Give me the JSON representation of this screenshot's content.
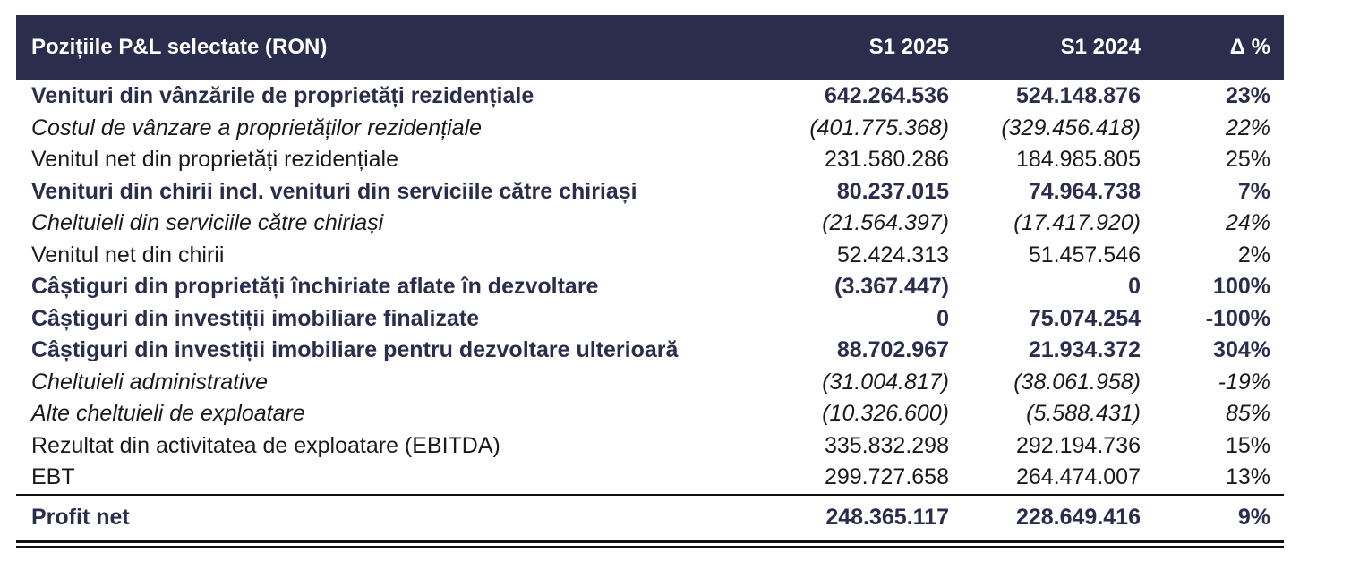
{
  "table": {
    "headers": {
      "label": "Pozițiile P&L selectate (RON)",
      "s1_2025": "S1 2025",
      "s1_2024": "S1 2024",
      "delta": "Δ %"
    },
    "rows": [
      {
        "label": "Venituri din vânzările de proprietăți rezidențiale",
        "s1_2025": "642.264.536",
        "s1_2024": "524.148.876",
        "delta": "23%",
        "style": "bold"
      },
      {
        "label": "Costul de vânzare a proprietăților rezidențiale",
        "s1_2025": "(401.775.368)",
        "s1_2024": "(329.456.418)",
        "delta": "22%",
        "style": "italic"
      },
      {
        "label": "Venitul net din proprietăți rezidențiale",
        "s1_2025": "231.580.286",
        "s1_2024": "184.985.805",
        "delta": "25%",
        "style": "normal"
      },
      {
        "label": "Venituri din chirii incl. venituri din serviciile către chiriași",
        "s1_2025": "80.237.015",
        "s1_2024": "74.964.738",
        "delta": "7%",
        "style": "bold"
      },
      {
        "label": "Cheltuieli din serviciile către chiriași",
        "s1_2025": "(21.564.397)",
        "s1_2024": "(17.417.920)",
        "delta": "24%",
        "style": "italic"
      },
      {
        "label": "Venitul net din chirii",
        "s1_2025": "52.424.313",
        "s1_2024": "51.457.546",
        "delta": "2%",
        "style": "normal"
      },
      {
        "label": "Câștiguri din proprietăți închiriate aflate în dezvoltare",
        "s1_2025": "(3.367.447)",
        "s1_2024": "0",
        "delta": "100%",
        "style": "bold"
      },
      {
        "label": "Câștiguri din investiții imobiliare finalizate",
        "s1_2025": "0",
        "s1_2024": "75.074.254",
        "delta": "-100%",
        "style": "bold"
      },
      {
        "label": "Câștiguri din investiții imobiliare pentru dezvoltare ulterioară",
        "s1_2025": "88.702.967",
        "s1_2024": "21.934.372",
        "delta": "304%",
        "style": "bold"
      },
      {
        "label": "Cheltuieli administrative",
        "s1_2025": "(31.004.817)",
        "s1_2024": "(38.061.958)",
        "delta": "-19%",
        "style": "italic"
      },
      {
        "label": "Alte cheltuieli de exploatare",
        "s1_2025": "(10.326.600)",
        "s1_2024": "(5.588.431)",
        "delta": "85%",
        "style": "italic"
      },
      {
        "label": "Rezultat din activitatea de exploatare (EBITDA)",
        "s1_2025": "335.832.298",
        "s1_2024": "292.194.736",
        "delta": "15%",
        "style": "normal"
      },
      {
        "label": "EBT",
        "s1_2025": "299.727.658",
        "s1_2024": "264.474.007",
        "delta": "13%",
        "style": "normal"
      }
    ],
    "total": {
      "label": "Profit net",
      "s1_2025": "248.365.117",
      "s1_2024": "228.649.416",
      "delta": "9%"
    }
  },
  "colors": {
    "header_bg": "#2b2d4c",
    "header_text": "#ffffff",
    "bold_text": "#2b2d4c",
    "body_text": "#1a1a1a"
  }
}
